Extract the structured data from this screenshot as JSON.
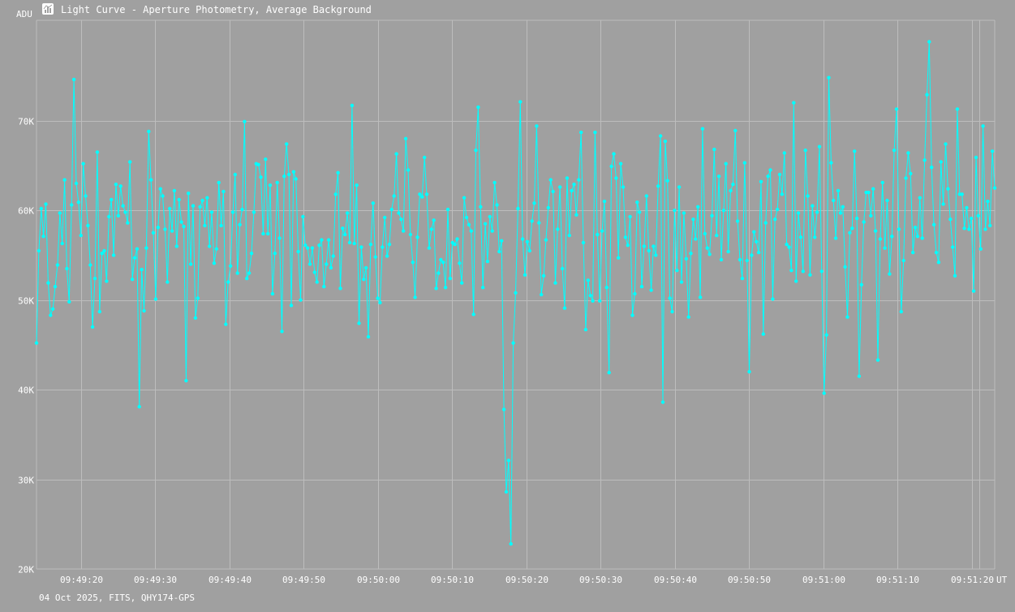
{
  "window": {
    "title": "Light Curve - Aperture Photometry, Average Background",
    "app_icon": "chart-app-icon"
  },
  "footer": {
    "info": "04 Oct 2025, FITS, QHY174-GPS"
  },
  "colors": {
    "background": "#a0a0a0",
    "grid": "#bdbdbd",
    "series": "#00ffff",
    "text": "#ffffff"
  },
  "chart_data": {
    "type": "line",
    "xlabel": "UT",
    "ylabel": "ADU",
    "grid": true,
    "ylim": [
      20000,
      81200
    ],
    "x_time_range": [
      "09:49:14.4",
      "09:51:23.5"
    ],
    "yticks": [
      {
        "value": 20000,
        "label": "20K"
      },
      {
        "value": 30000,
        "label": "30K"
      },
      {
        "value": 40000,
        "label": "40K"
      },
      {
        "value": 50000,
        "label": "50K"
      },
      {
        "value": 60000,
        "label": "60K"
      },
      {
        "value": 70000,
        "label": "70K"
      }
    ],
    "xticks": [
      {
        "t": 6.0,
        "label": "09:49:20"
      },
      {
        "t": 16.0,
        "label": "09:49:30"
      },
      {
        "t": 26.0,
        "label": "09:49:40"
      },
      {
        "t": 36.0,
        "label": "09:49:50"
      },
      {
        "t": 46.0,
        "label": "09:50:00"
      },
      {
        "t": 56.0,
        "label": "09:50:10"
      },
      {
        "t": 66.0,
        "label": "09:50:20"
      },
      {
        "t": 76.0,
        "label": "09:50:30"
      },
      {
        "t": 86.0,
        "label": "09:50:40"
      },
      {
        "t": 96.0,
        "label": "09:50:50"
      },
      {
        "t": 106.0,
        "label": "09:51:00"
      },
      {
        "t": 116.0,
        "label": "09:51:10"
      },
      {
        "t": 126.0,
        "label": "09:51:20"
      }
    ],
    "series": [
      {
        "values": [
          45200,
          55500,
          60200,
          57100,
          60700,
          51900,
          48300,
          49000,
          51500,
          53900,
          59700,
          56300,
          63400,
          53500,
          49800,
          60600,
          74600,
          63000,
          60900,
          57200,
          65200,
          61600,
          58300,
          53900,
          47000,
          52400,
          66500,
          48700,
          55200,
          55500,
          52100,
          59300,
          61200,
          55000,
          62900,
          59400,
          62700,
          60500,
          59800,
          58600,
          65400,
          52300,
          54700,
          55700,
          38100,
          53400,
          48800,
          55800,
          68800,
          63400,
          57500,
          50100,
          58100,
          62400,
          61600,
          57900,
          52000,
          60200,
          57700,
          62200,
          56000,
          61200,
          58700,
          58200,
          41000,
          61900,
          54000,
          60500,
          48000,
          50200,
          60400,
          61100,
          58300,
          61400,
          56000,
          59800,
          54100,
          55700,
          63100,
          58300,
          62100,
          47300,
          52000,
          53800,
          59800,
          64000,
          53000,
          58400,
          60100,
          69900,
          52400,
          53000,
          55200,
          59800,
          65200,
          65100,
          63700,
          57400,
          65700,
          57400,
          62800,
          50700,
          55200,
          63100,
          56900,
          46500,
          63800,
          67400,
          64000,
          49400,
          64300,
          63500,
          55400,
          50000,
          59300,
          56100,
          55800,
          54000,
          55800,
          53100,
          52000,
          56100,
          56700,
          51500,
          54000,
          56700,
          53600,
          54900,
          61800,
          64200,
          51300,
          58000,
          57300,
          59700,
          56400,
          71700,
          56300,
          62800,
          47400,
          55900,
          52300,
          53600,
          45900,
          56200,
          60800,
          54800,
          50200,
          49700,
          55900,
          59200,
          54900,
          56200,
          60100,
          61600,
          66300,
          59700,
          59000,
          57700,
          68000,
          64500,
          57300,
          54200,
          50300,
          57000,
          61800,
          61500,
          65900,
          61800,
          55800,
          57900,
          58900,
          51300,
          53000,
          54500,
          54200,
          51400,
          60100,
          52400,
          56400,
          56200,
          56800,
          54100,
          51900,
          61400,
          59200,
          58400,
          57700,
          48400,
          66700,
          71500,
          60400,
          51400,
          58500,
          54300,
          59300,
          57700,
          63100,
          60600,
          55400,
          56600,
          37800,
          28600,
          32100,
          22800,
          45200,
          50800,
          60200,
          72100,
          56800,
          52800,
          56500,
          55500,
          58800,
          60800,
          69400,
          58600,
          50600,
          52700,
          56700,
          60300,
          63400,
          62100,
          51900,
          57900,
          62600,
          53500,
          49100,
          63600,
          57200,
          62200,
          62900,
          59500,
          63400,
          68700,
          56400,
          46700,
          52200,
          50500,
          49900,
          68700,
          57300,
          49900,
          57700,
          61000,
          51400,
          41900,
          64900,
          66300,
          63600,
          54700,
          65200,
          62600,
          57000,
          56100,
          59300,
          48300,
          50700,
          60900,
          59800,
          51500,
          56000,
          61600,
          55500,
          51100,
          56000,
          55000,
          62700,
          68300,
          38600,
          67700,
          63300,
          50200,
          48700,
          60000,
          53300,
          62600,
          52000,
          59700,
          54600,
          48100,
          55200,
          59000,
          56800,
          60400,
          50300,
          69100,
          57400,
          55800,
          55100,
          59400,
          66800,
          57200,
          63800,
          54500,
          60000,
          65200,
          55400,
          62200,
          62900,
          68900,
          58800,
          54500,
          52400,
          65300,
          54400,
          42000,
          55000,
          57600,
          56500,
          55300,
          63200,
          46200,
          58600,
          63800,
          64500,
          50100,
          59000,
          60100,
          64000,
          61800,
          66400,
          56200,
          55900,
          53300,
          72000,
          52100,
          59700,
          57000,
          53200,
          66700,
          61600,
          52800,
          60500,
          57000,
          59800,
          67100,
          53200,
          39600,
          46100,
          74800,
          65300,
          61100,
          56900,
          62200,
          59700,
          60400,
          53700,
          48100,
          57500,
          58000,
          66600,
          59100,
          41500,
          51700,
          58700,
          62000,
          62000,
          59400,
          62400,
          57700,
          43300,
          56800,
          63100,
          55800,
          61100,
          52900,
          57100,
          66700,
          71300,
          57900,
          48700,
          54400,
          63600,
          66400,
          64100,
          55300,
          58100,
          57100,
          61400,
          56900,
          65600,
          72900,
          78800,
          64800,
          58400,
          55300,
          54200,
          65400,
          60700,
          67400,
          62400,
          59000,
          55900,
          52700,
          71300,
          61800,
          61800,
          58000,
          60300,
          57900,
          59100,
          51000,
          65900,
          59400,
          55700,
          69400,
          57900,
          61000,
          58300,
          66600,
          62500
        ]
      }
    ]
  }
}
